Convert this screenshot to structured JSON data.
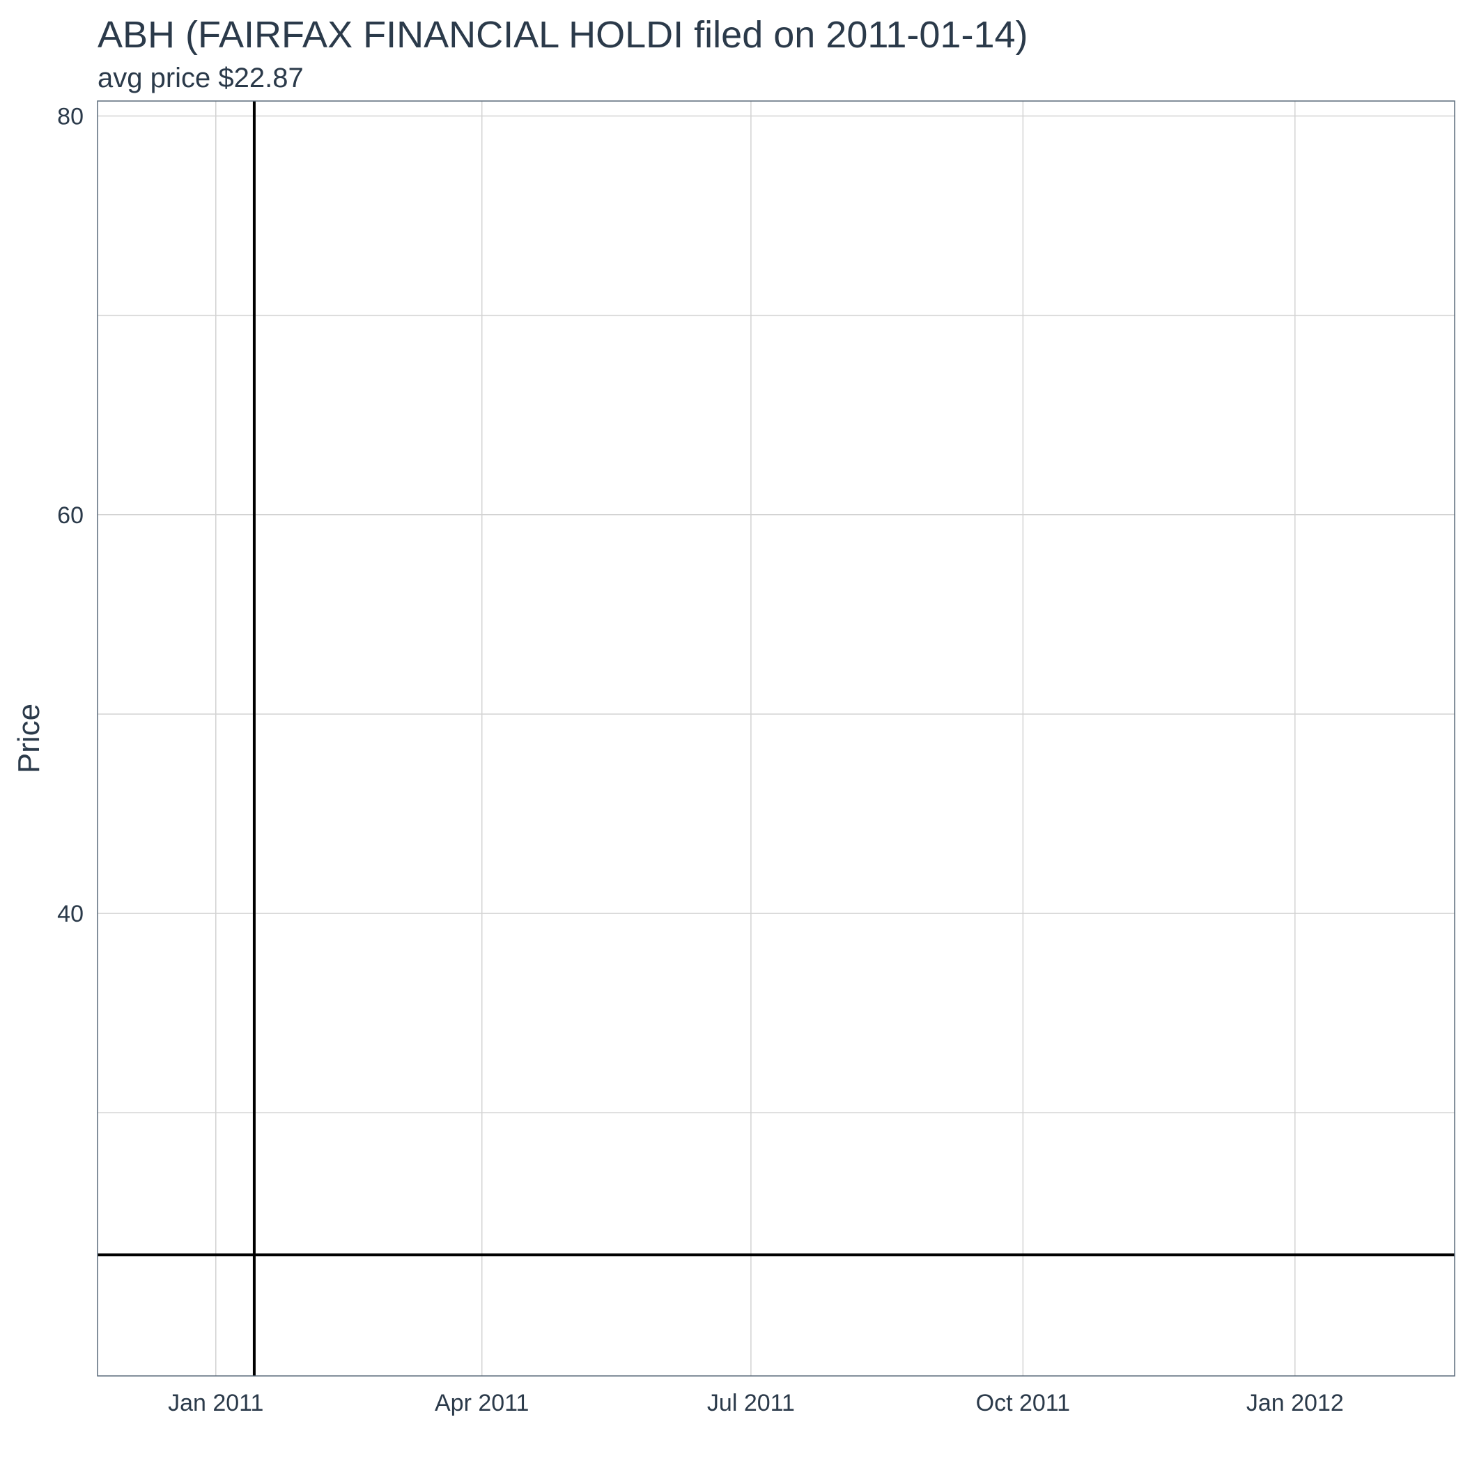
{
  "chart_data": {
    "type": "line",
    "title": "ABH (FAIRFAX FINANCIAL HOLDI filed on 2011-01-14)",
    "subtitle": "avg price $22.87",
    "xlabel": "",
    "ylabel": "Price",
    "xlim": [
      "2010-11-22",
      "2012-02-24"
    ],
    "ylim": [
      16.8,
      80.75
    ],
    "x_ticks": [
      "2011-01-01",
      "2011-04-01",
      "2011-07-01",
      "2011-10-01",
      "2012-01-01"
    ],
    "x_tick_labels": [
      "Jan 2011",
      "Apr 2011",
      "Jul 2011",
      "Oct 2011",
      "Jan 2012"
    ],
    "y_ticks": [
      80,
      60,
      40
    ],
    "y_tick_labels": [
      "80",
      "60",
      "40"
    ],
    "y_minor_grid": [
      70,
      50,
      30
    ],
    "grid": true,
    "series": [],
    "hlines": [
      {
        "y": 22.87
      }
    ],
    "vlines": [
      {
        "x": "2011-01-14"
      }
    ],
    "line_color": "#000000"
  }
}
